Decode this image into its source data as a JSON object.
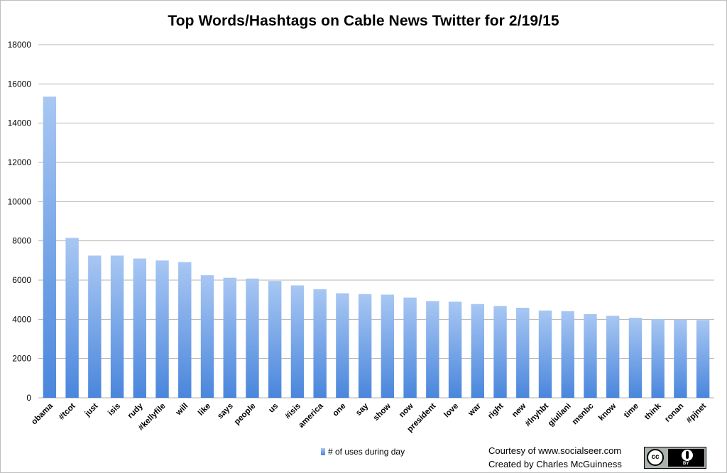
{
  "chart_data": {
    "type": "bar",
    "title": "Top Words/Hashtags on Cable News Twitter for 2/19/15",
    "xlabel": "",
    "ylabel": "",
    "ylim": [
      0,
      18000
    ],
    "yticks": [
      0,
      2000,
      4000,
      6000,
      8000,
      10000,
      12000,
      14000,
      16000,
      18000
    ],
    "grid": true,
    "legend_position": "bottom",
    "categories": [
      "obama",
      "#tcot",
      "just",
      "isis",
      "rudy",
      "#kellyfile",
      "will",
      "like",
      "says",
      "people",
      "us",
      "#isis",
      "america",
      "one",
      "say",
      "show",
      "now",
      "president",
      "love",
      "war",
      "right",
      "new",
      "#lnyhbt",
      "giuliani",
      "msnbc",
      "know",
      "time",
      "think",
      "ronan",
      "#pjnet"
    ],
    "series": [
      {
        "name": "# of uses during day",
        "values": [
          15350,
          8150,
          7250,
          7250,
          7100,
          7000,
          6920,
          6250,
          6120,
          6080,
          5960,
          5730,
          5540,
          5330,
          5290,
          5260,
          5110,
          4930,
          4900,
          4780,
          4680,
          4590,
          4450,
          4420,
          4270,
          4180,
          4080,
          4010,
          3980,
          3970
        ]
      }
    ],
    "colors": {
      "bar_top": "#a8c7f3",
      "bar_bottom": "#4a86dc",
      "grid": "#b3b3b3"
    }
  },
  "credits": {
    "line1": "Courtesy of www.socialseer.com",
    "line2": "Created by Charles McGuinness"
  },
  "license_badge": {
    "icon": "cc-by-icon",
    "left_text": "cc",
    "right_text": "BY"
  }
}
